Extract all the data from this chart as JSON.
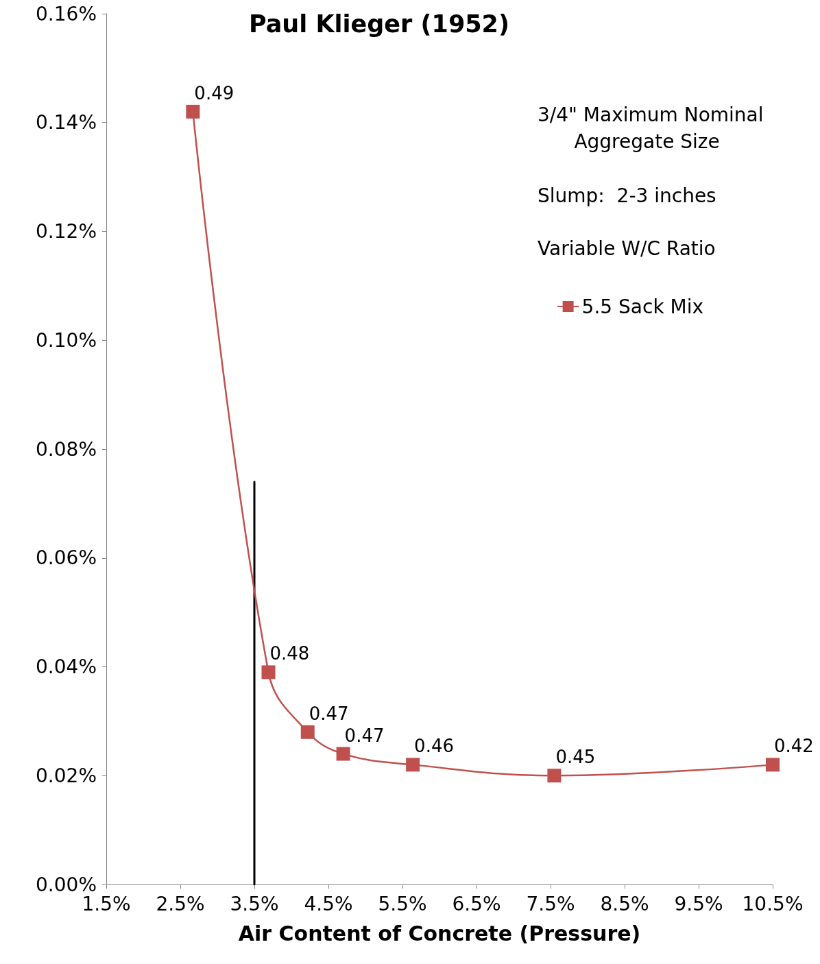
{
  "chart_data": {
    "type": "line",
    "title": "Paul Klieger (1952)",
    "xlabel": "Air Content of Concrete (Pressure)",
    "x": [
      2.67,
      3.69,
      4.22,
      4.7,
      5.64,
      7.55,
      10.5
    ],
    "series": [
      {
        "name": "5.5 Sack Mix",
        "color": "#c0504d",
        "values": [
          0.142,
          0.039,
          0.028,
          0.024,
          0.022,
          0.02,
          0.022
        ],
        "marker": "square"
      },
      {
        "color": "#000000",
        "x": [
          3.5,
          3.5
        ],
        "values": [
          0,
          0.074
        ],
        "marker": "none"
      }
    ],
    "xlim": [
      1.5,
      10.5
    ],
    "xticks": [
      {
        "value": 1.5,
        "label": "1.5%"
      },
      {
        "value": 2.5,
        "label": "2.5%"
      },
      {
        "value": 3.5,
        "label": "3.5%"
      },
      {
        "value": 4.5,
        "label": "4.5%"
      },
      {
        "value": 5.5,
        "label": "5.5%"
      },
      {
        "value": 6.5,
        "label": "6.5%"
      },
      {
        "value": 7.5,
        "label": "7.5%"
      },
      {
        "value": 8.5,
        "label": "8.5%"
      },
      {
        "value": 9.5,
        "label": "9.5%"
      },
      {
        "value": 10.5,
        "label": "10.5%"
      }
    ],
    "ylim": [
      0,
      0.16
    ],
    "yticks": [
      {
        "value": 0,
        "label": "0.00%"
      },
      {
        "value": 0.02,
        "label": "0.02%"
      },
      {
        "value": 0.04,
        "label": "0.04%"
      },
      {
        "value": 0.06,
        "label": "0.06%"
      },
      {
        "value": 0.08,
        "label": "0.08%"
      },
      {
        "value": 0.1,
        "label": "0.10%"
      },
      {
        "value": 0.12,
        "label": "0.12%"
      },
      {
        "value": 0.14,
        "label": "0.14%"
      },
      {
        "value": 0.16,
        "label": "0.16%"
      }
    ],
    "annotations": [
      "3/4\" Maximum Nominal\nAggregate Size",
      "Slump:  2-3 inches",
      "Variable W/C Ratio",
      {
        "text": "0.49",
        "x": 2.67,
        "y": 0.142
      },
      {
        "text": "0.48",
        "x": 3.69,
        "y": 0.039
      },
      {
        "text": "0.47",
        "x": 4.22,
        "y": 0.028
      },
      {
        "text": "0.47",
        "x": 4.7,
        "y": 0.024
      },
      {
        "text": "0.46",
        "x": 5.64,
        "y": 0.022
      },
      {
        "text": "0.45",
        "x": 7.55,
        "y": 0.02
      },
      {
        "text": "0.42",
        "x": 10.5,
        "y": 0.022
      }
    ],
    "legend": "top right",
    "grid": false
  }
}
